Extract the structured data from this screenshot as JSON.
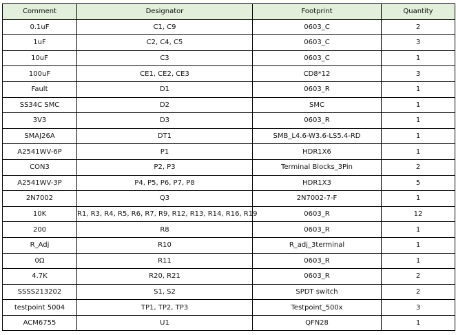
{
  "colors": {
    "header_bg": "#e2efda",
    "border": "#000000"
  },
  "headers": [
    "Comment",
    "Designator",
    "Footprint",
    "Quantity"
  ],
  "rows": [
    [
      "0.1uF",
      "C1, C9",
      "0603_C",
      "2"
    ],
    [
      "1uF",
      "C2, C4, C5",
      "0603_C",
      "3"
    ],
    [
      "10uF",
      "C3",
      "0603_C",
      "1"
    ],
    [
      "100uF",
      "CE1, CE2, CE3",
      "CD8*12",
      "3"
    ],
    [
      "Fault",
      "D1",
      "0603_R",
      "1"
    ],
    [
      "SS34C SMC",
      "D2",
      "SMC",
      "1"
    ],
    [
      "3V3",
      "D3",
      "0603_R",
      "1"
    ],
    [
      "SMAJ26A",
      "DT1",
      "SMB_L4.6-W3.6-LS5.4-RD",
      "1"
    ],
    [
      "A2541WV-6P",
      "P1",
      "HDR1X6",
      "1"
    ],
    [
      "CON3",
      "P2, P3",
      "Terminal Blocks_3Pin",
      "2"
    ],
    [
      "A2541WV-3P",
      "P4, P5, P6, P7, P8",
      "HDR1X3",
      "5"
    ],
    [
      "2N7002",
      "Q3",
      "2N7002-7-F",
      "1"
    ],
    [
      "10K",
      "R1, R3, R4, R5, R6, R7, R9, R12, R13, R14, R16, R19",
      "0603_R",
      "12"
    ],
    [
      "200",
      "R8",
      "0603_R",
      "1"
    ],
    [
      "R_Adj",
      "R10",
      "R_adj_3terminal",
      "1"
    ],
    [
      "0Ω",
      "R11",
      "0603_R",
      "1"
    ],
    [
      "4.7K",
      "R20, R21",
      "0603_R",
      "2"
    ],
    [
      "SSSS213202",
      "S1, S2",
      "SPDT switch",
      "2"
    ],
    [
      "testpoint 5004",
      "TP1, TP2, TP3",
      "Testpoint_500x",
      "3"
    ],
    [
      "ACM6755",
      "U1",
      "QFN28",
      "1"
    ]
  ]
}
